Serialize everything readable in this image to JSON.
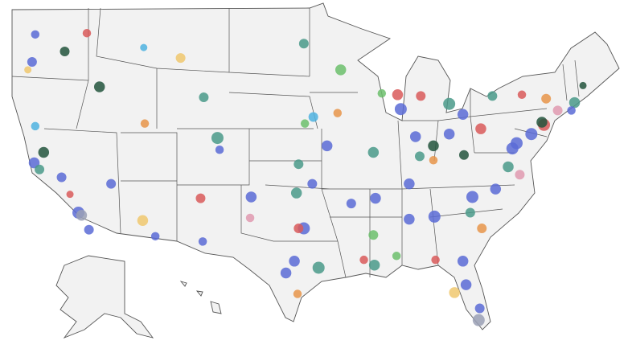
{
  "points": [
    {
      "lon": -122.3,
      "lat": 47.6,
      "size": 7,
      "color": "#5b6bd6"
    },
    {
      "lon": -122.6,
      "lat": 45.5,
      "size": 8,
      "color": "#5b6bd6"
    },
    {
      "lon": -123.0,
      "lat": 44.9,
      "size": 6,
      "color": "#f0c86e"
    },
    {
      "lon": -117.4,
      "lat": 47.7,
      "size": 7,
      "color": "#d95b5b"
    },
    {
      "lon": -119.5,
      "lat": 46.3,
      "size": 8,
      "color": "#23553d"
    },
    {
      "lon": -122.4,
      "lat": 37.8,
      "size": 9,
      "color": "#5b6bd6"
    },
    {
      "lon": -121.9,
      "lat": 37.3,
      "size": 8,
      "color": "#4a9a8a"
    },
    {
      "lon": -121.5,
      "lat": 38.6,
      "size": 9,
      "color": "#23553d"
    },
    {
      "lon": -122.3,
      "lat": 40.6,
      "size": 7,
      "color": "#4fb3e0"
    },
    {
      "lon": -119.8,
      "lat": 36.7,
      "size": 8,
      "color": "#5b6bd6"
    },
    {
      "lon": -118.2,
      "lat": 34.0,
      "size": 10,
      "color": "#5b6bd6"
    },
    {
      "lon": -117.9,
      "lat": 33.8,
      "size": 9,
      "color": "#9aa0b5"
    },
    {
      "lon": -117.2,
      "lat": 32.7,
      "size": 8,
      "color": "#5b6bd6"
    },
    {
      "lon": -119.0,
      "lat": 35.4,
      "size": 6,
      "color": "#d95b5b"
    },
    {
      "lon": -115.1,
      "lat": 36.2,
      "size": 8,
      "color": "#5b6bd6"
    },
    {
      "lon": -112.1,
      "lat": 33.4,
      "size": 9,
      "color": "#f0c86e"
    },
    {
      "lon": -110.9,
      "lat": 32.2,
      "size": 7,
      "color": "#5b6bd6"
    },
    {
      "lon": -111.9,
      "lat": 40.8,
      "size": 7,
      "color": "#e8954a"
    },
    {
      "lon": -116.2,
      "lat": 43.6,
      "size": 9,
      "color": "#23553d"
    },
    {
      "lon": -108.5,
      "lat": 45.8,
      "size": 8,
      "color": "#f0c86e"
    },
    {
      "lon": -112.0,
      "lat": 46.6,
      "size": 6,
      "color": "#4fb3e0"
    },
    {
      "lon": -106.3,
      "lat": 42.8,
      "size": 8,
      "color": "#4a9a8a"
    },
    {
      "lon": -105.0,
      "lat": 39.7,
      "size": 10,
      "color": "#4a9a8a"
    },
    {
      "lon": -104.8,
      "lat": 38.8,
      "size": 7,
      "color": "#5b6bd6"
    },
    {
      "lon": -106.6,
      "lat": 35.1,
      "size": 8,
      "color": "#d95b5b"
    },
    {
      "lon": -106.4,
      "lat": 31.8,
      "size": 7,
      "color": "#5b6bd6"
    },
    {
      "lon": -101.8,
      "lat": 35.2,
      "size": 9,
      "color": "#5b6bd6"
    },
    {
      "lon": -97.5,
      "lat": 35.5,
      "size": 9,
      "color": "#4a9a8a"
    },
    {
      "lon": -96.0,
      "lat": 36.2,
      "size": 8,
      "color": "#5b6bd6"
    },
    {
      "lon": -96.8,
      "lat": 32.8,
      "size": 10,
      "color": "#5b6bd6"
    },
    {
      "lon": -97.3,
      "lat": 32.8,
      "size": 8,
      "color": "#d95b5b"
    },
    {
      "lon": -97.7,
      "lat": 30.3,
      "size": 9,
      "color": "#5b6bd6"
    },
    {
      "lon": -98.5,
      "lat": 29.4,
      "size": 9,
      "color": "#5b6bd6"
    },
    {
      "lon": -95.4,
      "lat": 29.8,
      "size": 10,
      "color": "#4a9a8a"
    },
    {
      "lon": -97.4,
      "lat": 27.8,
      "size": 7,
      "color": "#e8954a"
    },
    {
      "lon": -101.9,
      "lat": 33.6,
      "size": 7,
      "color": "#e09ab0"
    },
    {
      "lon": -97.3,
      "lat": 37.7,
      "size": 8,
      "color": "#4a9a8a"
    },
    {
      "lon": -94.6,
      "lat": 39.1,
      "size": 9,
      "color": "#5b6bd6"
    },
    {
      "lon": -95.9,
      "lat": 41.3,
      "size": 8,
      "color": "#4fb3e0"
    },
    {
      "lon": -96.7,
      "lat": 40.8,
      "size": 7,
      "color": "#6cbf6c"
    },
    {
      "lon": -93.3,
      "lat": 44.9,
      "size": 9,
      "color": "#6cbf6c"
    },
    {
      "lon": -93.6,
      "lat": 41.6,
      "size": 7,
      "color": "#e8954a"
    },
    {
      "lon": -96.8,
      "lat": 46.9,
      "size": 8,
      "color": "#4a9a8a"
    },
    {
      "lon": -90.2,
      "lat": 38.6,
      "size": 9,
      "color": "#4a9a8a"
    },
    {
      "lon": -87.6,
      "lat": 41.9,
      "size": 10,
      "color": "#5b6bd6"
    },
    {
      "lon": -87.9,
      "lat": 43.0,
      "size": 9,
      "color": "#d95b5b"
    },
    {
      "lon": -89.4,
      "lat": 43.1,
      "size": 7,
      "color": "#6cbf6c"
    },
    {
      "lon": -86.2,
      "lat": 39.8,
      "size": 9,
      "color": "#5b6bd6"
    },
    {
      "lon": -83.0,
      "lat": 42.3,
      "size": 10,
      "color": "#4a9a8a"
    },
    {
      "lon": -85.7,
      "lat": 42.9,
      "size": 8,
      "color": "#d95b5b"
    },
    {
      "lon": -84.5,
      "lat": 39.1,
      "size": 9,
      "color": "#23553d"
    },
    {
      "lon": -83.0,
      "lat": 40.0,
      "size": 9,
      "color": "#5b6bd6"
    },
    {
      "lon": -81.7,
      "lat": 41.5,
      "size": 9,
      "color": "#5b6bd6"
    },
    {
      "lon": -80.0,
      "lat": 40.4,
      "size": 9,
      "color": "#d95b5b"
    },
    {
      "lon": -85.8,
      "lat": 38.3,
      "size": 8,
      "color": "#4a9a8a"
    },
    {
      "lon": -86.8,
      "lat": 36.2,
      "size": 9,
      "color": "#5b6bd6"
    },
    {
      "lon": -90.0,
      "lat": 35.1,
      "size": 9,
      "color": "#5b6bd6"
    },
    {
      "lon": -84.4,
      "lat": 33.7,
      "size": 10,
      "color": "#5b6bd6"
    },
    {
      "lon": -86.8,
      "lat": 33.5,
      "size": 9,
      "color": "#5b6bd6"
    },
    {
      "lon": -90.2,
      "lat": 32.3,
      "size": 8,
      "color": "#6cbf6c"
    },
    {
      "lon": -92.3,
      "lat": 34.7,
      "size": 8,
      "color": "#5b6bd6"
    },
    {
      "lon": -90.1,
      "lat": 30.0,
      "size": 9,
      "color": "#4a9a8a"
    },
    {
      "lon": -91.1,
      "lat": 30.4,
      "size": 7,
      "color": "#d95b5b"
    },
    {
      "lon": -88.0,
      "lat": 30.7,
      "size": 7,
      "color": "#6cbf6c"
    },
    {
      "lon": -81.7,
      "lat": 30.3,
      "size": 9,
      "color": "#5b6bd6"
    },
    {
      "lon": -82.5,
      "lat": 27.9,
      "size": 9,
      "color": "#f0c86e"
    },
    {
      "lon": -81.4,
      "lat": 28.5,
      "size": 9,
      "color": "#5b6bd6"
    },
    {
      "lon": -80.2,
      "lat": 25.8,
      "size": 10,
      "color": "#9aa0b5"
    },
    {
      "lon": -80.1,
      "lat": 26.7,
      "size": 8,
      "color": "#5b6bd6"
    },
    {
      "lon": -84.3,
      "lat": 30.4,
      "size": 7,
      "color": "#d95b5b"
    },
    {
      "lon": -80.8,
      "lat": 35.2,
      "size": 10,
      "color": "#5b6bd6"
    },
    {
      "lon": -78.6,
      "lat": 35.8,
      "size": 9,
      "color": "#5b6bd6"
    },
    {
      "lon": -81.0,
      "lat": 34.0,
      "size": 8,
      "color": "#4a9a8a"
    },
    {
      "lon": -79.9,
      "lat": 32.8,
      "size": 8,
      "color": "#e8954a"
    },
    {
      "lon": -77.4,
      "lat": 37.5,
      "size": 9,
      "color": "#4a9a8a"
    },
    {
      "lon": -76.3,
      "lat": 36.9,
      "size": 8,
      "color": "#e09ab0"
    },
    {
      "lon": -77.0,
      "lat": 38.9,
      "size": 10,
      "color": "#5b6bd6"
    },
    {
      "lon": -76.6,
      "lat": 39.3,
      "size": 10,
      "color": "#5b6bd6"
    },
    {
      "lon": -75.2,
      "lat": 40.0,
      "size": 10,
      "color": "#5b6bd6"
    },
    {
      "lon": -74.0,
      "lat": 40.7,
      "size": 10,
      "color": "#d95b5b"
    },
    {
      "lon": -74.2,
      "lat": 40.9,
      "size": 9,
      "color": "#23553d"
    },
    {
      "lon": -73.8,
      "lat": 42.7,
      "size": 8,
      "color": "#e8954a"
    },
    {
      "lon": -76.1,
      "lat": 43.0,
      "size": 7,
      "color": "#d95b5b"
    },
    {
      "lon": -78.9,
      "lat": 42.9,
      "size": 8,
      "color": "#4a9a8a"
    },
    {
      "lon": -72.7,
      "lat": 41.8,
      "size": 8,
      "color": "#e09ab0"
    },
    {
      "lon": -71.4,
      "lat": 41.8,
      "size": 7,
      "color": "#5b6bd6"
    },
    {
      "lon": -71.1,
      "lat": 42.4,
      "size": 9,
      "color": "#4a9a8a"
    },
    {
      "lon": -70.3,
      "lat": 43.7,
      "size": 6,
      "color": "#23553d"
    },
    {
      "lon": -81.6,
      "lat": 38.4,
      "size": 8,
      "color": "#23553d"
    },
    {
      "lon": -84.5,
      "lat": 38.0,
      "size": 7,
      "color": "#e8954a"
    }
  ]
}
